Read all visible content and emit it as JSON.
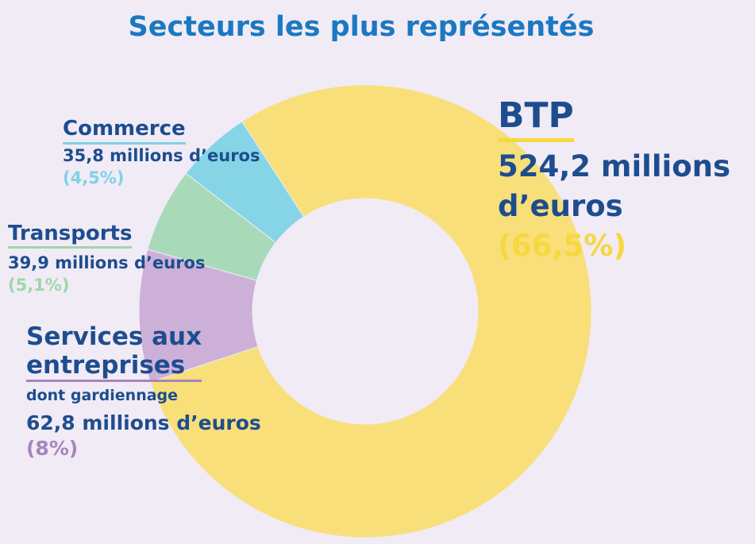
{
  "chart_data": {
    "type": "pie",
    "title": "Secteurs les plus représentés",
    "unit": "millions d’euros",
    "slices": [
      {
        "name": "BTP",
        "value_text": "524,2 millions d’euros",
        "value": 524.2,
        "percent_text": "(66,5%)",
        "percent": 66.5,
        "color": "#f8df7a"
      },
      {
        "name": "Services aux entreprises",
        "subtitle": "dont gardiennage",
        "value_text": "62,8 millions d’euros",
        "value": 62.8,
        "percent_text": "(8%)",
        "percent": 8,
        "color": "#cdb0d8"
      },
      {
        "name": "Transports",
        "value_text": "39,9 millions d’euros",
        "value": 39.9,
        "percent_text": "(5,1%)",
        "percent": 5.1,
        "color": "#a8dab9"
      },
      {
        "name": "Commerce",
        "value_text": "35,8 millions d’euros",
        "value": 35.8,
        "percent_text": "(4,5%)",
        "percent": 4.5,
        "color": "#86d5e6"
      }
    ]
  }
}
